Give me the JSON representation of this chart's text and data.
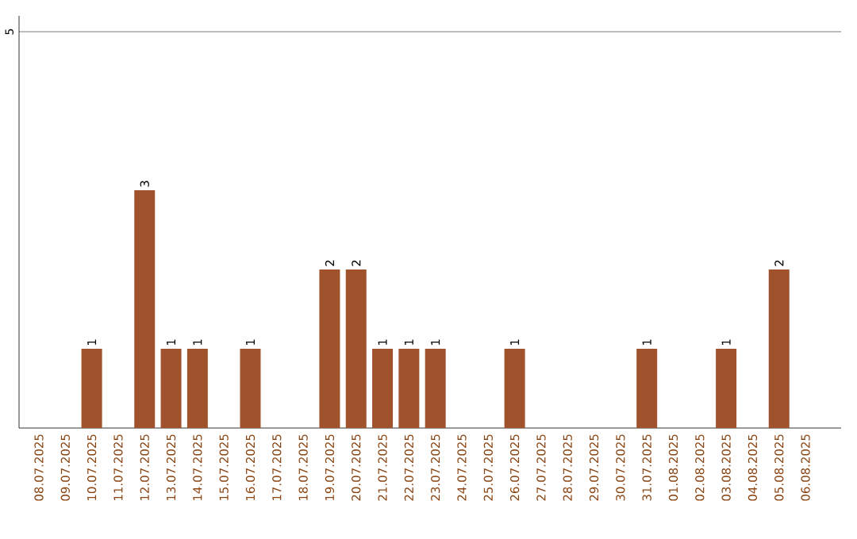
{
  "chart_data": {
    "type": "bar",
    "categories": [
      "08.07.2025",
      "09.07.2025",
      "10.07.2025",
      "11.07.2025",
      "12.07.2025",
      "13.07.2025",
      "14.07.2025",
      "15.07.2025",
      "16.07.2025",
      "17.07.2025",
      "18.07.2025",
      "19.07.2025",
      "20.07.2025",
      "21.07.2025",
      "22.07.2025",
      "23.07.2025",
      "24.07.2025",
      "25.07.2025",
      "26.07.2025",
      "27.07.2025",
      "28.07.2025",
      "29.07.2025",
      "30.07.2025",
      "31.07.2025",
      "01.08.2025",
      "02.08.2025",
      "03.08.2025",
      "04.08.2025",
      "05.08.2025",
      "06.08.2025"
    ],
    "values": [
      0,
      0,
      1,
      0,
      3,
      1,
      1,
      0,
      1,
      0,
      0,
      2,
      2,
      1,
      1,
      1,
      0,
      0,
      1,
      0,
      0,
      0,
      0,
      1,
      0,
      0,
      1,
      0,
      2,
      0
    ],
    "value_labels": [
      null,
      null,
      "1",
      null,
      "3",
      "1",
      "1",
      null,
      "1",
      null,
      null,
      "2",
      "2",
      "1",
      "1",
      "1",
      null,
      null,
      "1",
      null,
      null,
      null,
      null,
      "1",
      null,
      null,
      "1",
      null,
      "2",
      null
    ],
    "color": "#a0522d",
    "ylim": [
      0,
      5.2
    ],
    "yticks": [
      5
    ],
    "grid": "y"
  }
}
